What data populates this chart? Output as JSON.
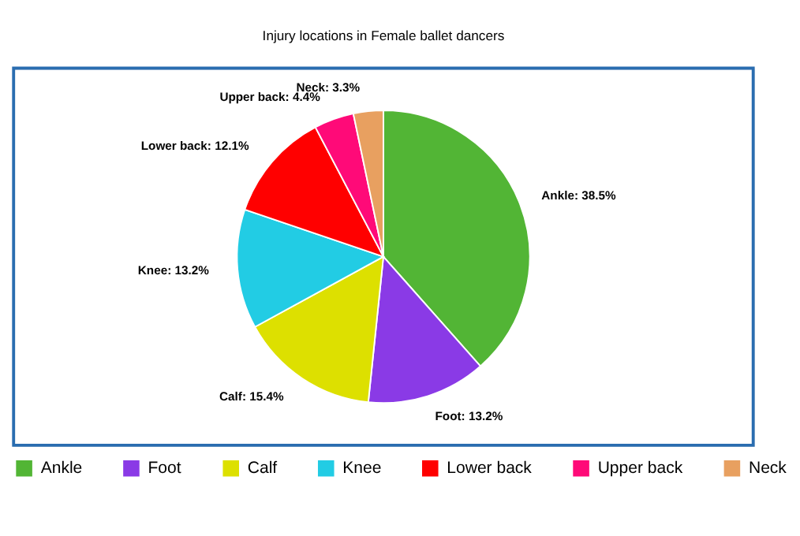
{
  "chart_data": {
    "type": "pie",
    "title": "Injury locations in Female ballet dancers",
    "categories": [
      "Ankle",
      "Foot",
      "Calf",
      "Knee",
      "Lower back",
      "Upper back",
      "Neck"
    ],
    "values": [
      38.5,
      13.2,
      15.4,
      13.2,
      12.1,
      4.4,
      3.3
    ],
    "value_labels": [
      "Ankle: 38.5%",
      "Foot: 13.2%",
      "Calf: 15.4%",
      "Knee: 13.2%",
      "Lower back: 12.1%",
      "Upper back: 4.4%",
      "Neck: 3.3%"
    ],
    "colors": [
      "#52b535",
      "#8a3ae6",
      "#dde000",
      "#22cce4",
      "#ff0000",
      "#ff0a78",
      "#e8a060"
    ],
    "legend": "bottom"
  }
}
